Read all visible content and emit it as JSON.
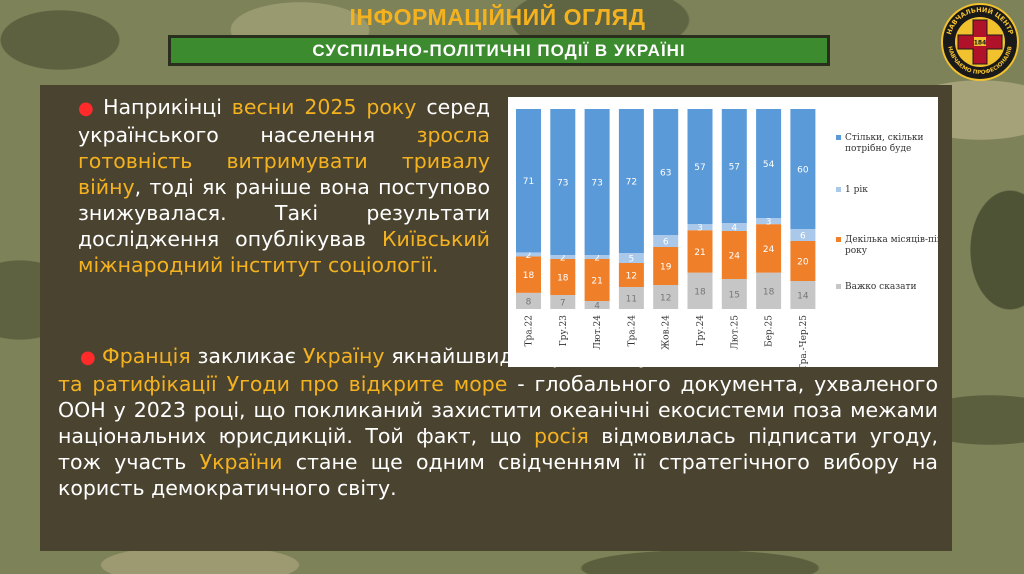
{
  "header": {
    "title": "ІНФОРМАЦІЙНИЙ ОГЛЯД",
    "subtitle": "СУСПІЛЬНО-ПОЛІТИЧНІ ПОДІЇ В УКРАЇНІ"
  },
  "logo": {
    "top_text": "НАВЧАЛЬНИЙ ЦЕНТР",
    "bottom_text": "НАВЧАЄМО ПРОФЕСІОНАЛІВ",
    "number": "184",
    "colors": {
      "ring": "#1a1a1a",
      "cross": "#b0122a",
      "text": "#f2c12e"
    }
  },
  "paragraph1": {
    "t1": "Наприкінці ",
    "h1": "весни 2025 року",
    "t2": " серед українського населення ",
    "h2": "зросла готовність витримувати тривалу війну",
    "t3": ", тоді як раніше вона поступово знижувалася. Такі результати дослідження опублікував ",
    "h3": "Київський міжнародний інститут соціології."
  },
  "paragraph2": {
    "h1": "Франція",
    "t1": " закликає ",
    "h2": "Україну",
    "t2": " якнайшвидше розглянути можливість ",
    "h3": "підписання та ратифікації Угоди про відкрите море",
    "t3": " - глобального документа, ухваленого ООН у 2023 році, що покликаний захистити океанічні екосистеми поза межами національних юрисдикцій. Той факт, що ",
    "h4": "росія",
    "t4": " відмовилась підписати угоду, тож участь ",
    "h5": "України",
    "t5": " стане ще одним свідченням її стратегічного вибору на користь демократичного світу."
  },
  "colors": {
    "accent": "#f5b21f",
    "bullet": "#ff2a2a",
    "panel": "#4a4330",
    "subtitle_bar": "#3d8b2f"
  },
  "chart_data": {
    "type": "bar",
    "stacked": true,
    "percent": true,
    "categories": [
      "Тра.22",
      "Гру.23",
      "Лют.24",
      "Тра.24",
      "Жов.24",
      "Гру.24",
      "Лют.25",
      "Бер.25",
      "Тра.-Чер.25"
    ],
    "series": [
      {
        "name": "Важко сказати",
        "color": "#c6c6c6",
        "values": [
          8,
          7,
          4,
          11,
          12,
          18,
          15,
          18,
          14
        ]
      },
      {
        "name": "Декілька місяців-пів року",
        "color": "#f07f2a",
        "values": [
          18,
          18,
          21,
          12,
          19,
          21,
          24,
          24,
          20
        ]
      },
      {
        "name": "1 рік",
        "color": "#a9c8ea",
        "values": [
          2,
          2,
          2,
          5,
          6,
          3,
          4,
          3,
          6
        ]
      },
      {
        "name": "Стільки, скільки потрібно буде",
        "color": "#5a9ad9",
        "values": [
          71,
          73,
          73,
          72,
          63,
          57,
          57,
          54,
          60
        ]
      }
    ],
    "ylim": [
      0,
      100
    ],
    "legend_position": "right"
  }
}
